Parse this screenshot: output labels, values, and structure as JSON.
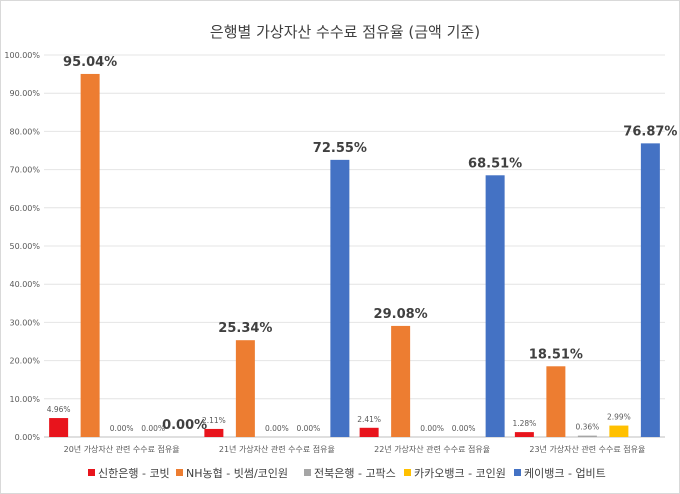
{
  "chart_data": {
    "type": "bar",
    "title": "은행별 가상자산 수수료 점유율 (금액 기준)",
    "categories": [
      "20년 가상자산 관련 수수료 점유율",
      "21년 가상자산 관련 수수료 점유율",
      "22년 가상자산 관련 수수료 점유율",
      "23년 가상자산 관련 수수료 점유율"
    ],
    "ylim": [
      0,
      100
    ],
    "yticks": [
      "0.00%",
      "10.00%",
      "20.00%",
      "30.00%",
      "40.00%",
      "50.00%",
      "60.00%",
      "70.00%",
      "80.00%",
      "90.00%",
      "100.00%"
    ],
    "grid": true,
    "legend": "bottom",
    "series": [
      {
        "name": "신한은행 - 코빗",
        "color": "#e8141c",
        "values": [
          4.96,
          2.11,
          2.41,
          1.28
        ],
        "labels": [
          "4.96%",
          "2.11%",
          "2.41%",
          "1.28%"
        ],
        "label_size": [
          "small",
          "small",
          "small",
          "small"
        ]
      },
      {
        "name": "NH농협 - 빗썸/코인원",
        "color": "#ed7d31",
        "values": [
          95.04,
          25.34,
          29.08,
          18.51
        ],
        "labels": [
          "95.04%",
          "25.34%",
          "29.08%",
          "18.51%"
        ],
        "label_size": [
          "big",
          "big",
          "big",
          "big"
        ]
      },
      {
        "name": "전북은행 - 고팍스",
        "color": "#a5a5a5",
        "values": [
          0,
          0,
          0,
          0.36
        ],
        "labels": [
          "0.00%",
          "0.00%",
          "0.00%",
          "0.36%"
        ],
        "label_size": [
          "small",
          "small",
          "small",
          "small"
        ]
      },
      {
        "name": "카카오뱅크 - 코인원",
        "color": "#ffc000",
        "values": [
          0,
          0,
          0,
          2.99
        ],
        "labels": [
          "0.00%",
          "0.00%",
          "0.00%",
          "2.99%"
        ],
        "label_size": [
          "small",
          "small",
          "small",
          "small"
        ]
      },
      {
        "name": "케이뱅크 - 업비트",
        "color": "#4472c4",
        "values": [
          0,
          72.55,
          68.51,
          76.87
        ],
        "labels": [
          "0.00%",
          "72.55%",
          "68.51%",
          "76.87%"
        ],
        "label_size": [
          "big",
          "big",
          "big",
          "big"
        ]
      }
    ]
  }
}
